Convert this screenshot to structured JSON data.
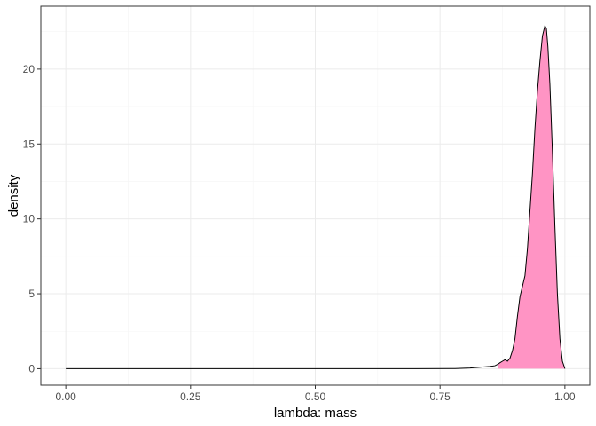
{
  "chart_data": {
    "type": "area",
    "xlabel": "lambda: mass",
    "ylabel": "density",
    "xlim": [
      -0.05,
      1.05
    ],
    "ylim": [
      -1.1,
      24.2
    ],
    "x_ticks": [
      0.0,
      0.25,
      0.5,
      0.75,
      1.0
    ],
    "x_tick_labels": [
      "0.00",
      "0.25",
      "0.50",
      "0.75",
      "1.00"
    ],
    "y_ticks": [
      0,
      5,
      10,
      15,
      20
    ],
    "y_tick_labels": [
      "0",
      "5",
      "10",
      "15",
      "20"
    ],
    "grid": true,
    "theme": "bw",
    "fill_range": [
      0.866,
      1.0
    ],
    "series": [
      {
        "x": [
          0.0,
          0.1,
          0.2,
          0.3,
          0.4,
          0.5,
          0.6,
          0.7,
          0.78,
          0.81,
          0.83,
          0.85,
          0.86,
          0.866,
          0.87,
          0.875,
          0.88,
          0.885,
          0.89,
          0.895,
          0.9,
          0.905,
          0.91,
          0.915,
          0.92,
          0.925,
          0.93,
          0.935,
          0.94,
          0.945,
          0.95,
          0.955,
          0.96,
          0.963,
          0.966,
          0.97,
          0.975,
          0.98,
          0.985,
          0.99,
          0.995,
          1.0
        ],
        "y": [
          0,
          0,
          0,
          0,
          0,
          0,
          0,
          0,
          0.01,
          0.05,
          0.1,
          0.15,
          0.2,
          0.3,
          0.4,
          0.5,
          0.6,
          0.5,
          0.7,
          1.2,
          2.0,
          3.5,
          4.8,
          5.5,
          6.2,
          8.0,
          10.5,
          13.0,
          16.0,
          18.5,
          20.5,
          22.2,
          22.9,
          22.7,
          21.5,
          19.0,
          14.5,
          9.5,
          5.0,
          2.0,
          0.5,
          0.0
        ]
      }
    ],
    "colors": {
      "fill": "#FF94C4",
      "line": "#000000"
    }
  }
}
